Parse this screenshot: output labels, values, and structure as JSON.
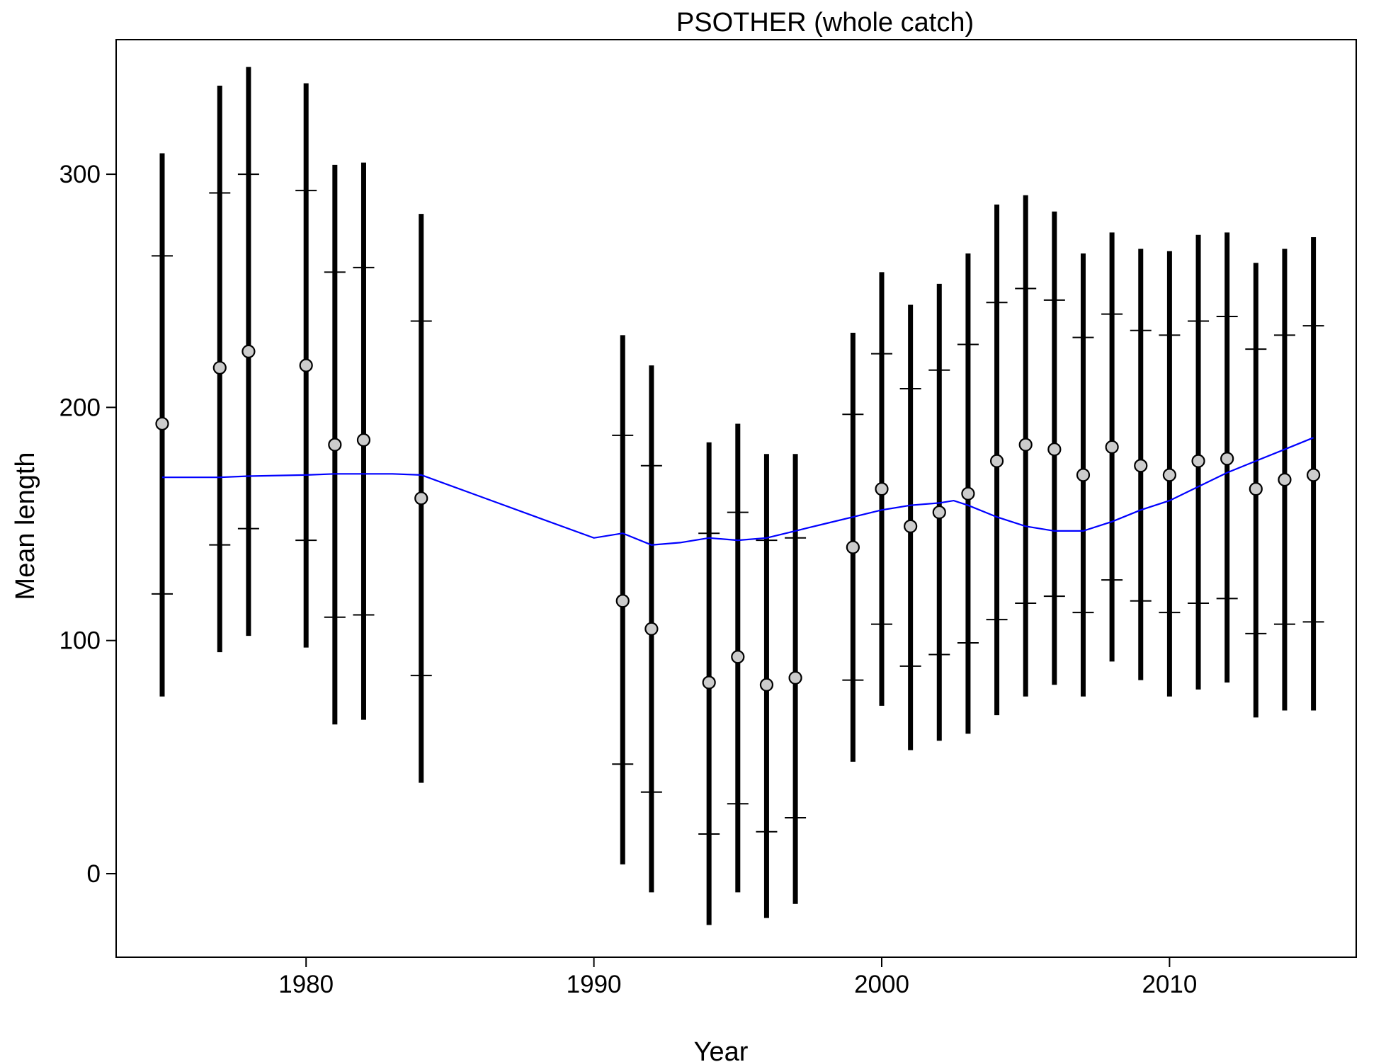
{
  "chart_data": {
    "type": "scatter",
    "title": "PSOTHER (whole catch)",
    "xlabel": "Year",
    "ylabel": "Mean length",
    "xlim": [
      1975,
      2016
    ],
    "ylim": [
      -35,
      355
    ],
    "x_ticks": [
      1980,
      1990,
      2000,
      2010
    ],
    "y_ticks": [
      0,
      100,
      200,
      300
    ],
    "grid": false,
    "legend": "none",
    "colors": {
      "bars": "#000000",
      "point_fill": "#cccccc",
      "point_stroke": "#000000",
      "smoother": "#0000ff"
    },
    "series": [
      {
        "type": "points-with-intervals",
        "points": [
          {
            "year": 1975,
            "mean": 193,
            "inner_lo": 120,
            "inner_hi": 265,
            "outer_lo": 76,
            "outer_hi": 309
          },
          {
            "year": 1977,
            "mean": 217,
            "inner_lo": 141,
            "inner_hi": 292,
            "outer_lo": 95,
            "outer_hi": 338
          },
          {
            "year": 1978,
            "mean": 224,
            "inner_lo": 148,
            "inner_hi": 300,
            "outer_lo": 102,
            "outer_hi": 346
          },
          {
            "year": 1980,
            "mean": 218,
            "inner_lo": 143,
            "inner_hi": 293,
            "outer_lo": 97,
            "outer_hi": 339
          },
          {
            "year": 1981,
            "mean": 184,
            "inner_lo": 110,
            "inner_hi": 258,
            "outer_lo": 64,
            "outer_hi": 304
          },
          {
            "year": 1982,
            "mean": 186,
            "inner_lo": 111,
            "inner_hi": 260,
            "outer_lo": 66,
            "outer_hi": 305
          },
          {
            "year": 1984,
            "mean": 161,
            "inner_lo": 85,
            "inner_hi": 237,
            "outer_lo": 39,
            "outer_hi": 283
          },
          {
            "year": 1991,
            "mean": 117,
            "inner_lo": 47,
            "inner_hi": 188,
            "outer_lo": 4,
            "outer_hi": 231
          },
          {
            "year": 1992,
            "mean": 105,
            "inner_lo": 35,
            "inner_hi": 175,
            "outer_lo": -8,
            "outer_hi": 218
          },
          {
            "year": 1994,
            "mean": 82,
            "inner_lo": 17,
            "inner_hi": 146,
            "outer_lo": -22,
            "outer_hi": 185
          },
          {
            "year": 1995,
            "mean": 93,
            "inner_lo": 30,
            "inner_hi": 155,
            "outer_lo": -8,
            "outer_hi": 193
          },
          {
            "year": 1996,
            "mean": 81,
            "inner_lo": 18,
            "inner_hi": 143,
            "outer_lo": -19,
            "outer_hi": 180
          },
          {
            "year": 1997,
            "mean": 84,
            "inner_lo": 24,
            "inner_hi": 144,
            "outer_lo": -13,
            "outer_hi": 180
          },
          {
            "year": 1999,
            "mean": 140,
            "inner_lo": 83,
            "inner_hi": 197,
            "outer_lo": 48,
            "outer_hi": 232
          },
          {
            "year": 2000,
            "mean": 165,
            "inner_lo": 107,
            "inner_hi": 223,
            "outer_lo": 72,
            "outer_hi": 258
          },
          {
            "year": 2001,
            "mean": 149,
            "inner_lo": 89,
            "inner_hi": 208,
            "outer_lo": 53,
            "outer_hi": 244
          },
          {
            "year": 2002,
            "mean": 155,
            "inner_lo": 94,
            "inner_hi": 216,
            "outer_lo": 57,
            "outer_hi": 253
          },
          {
            "year": 2003,
            "mean": 163,
            "inner_lo": 99,
            "inner_hi": 227,
            "outer_lo": 60,
            "outer_hi": 266
          },
          {
            "year": 2004,
            "mean": 177,
            "inner_lo": 109,
            "inner_hi": 245,
            "outer_lo": 68,
            "outer_hi": 287
          },
          {
            "year": 2005,
            "mean": 184,
            "inner_lo": 116,
            "inner_hi": 251,
            "outer_lo": 76,
            "outer_hi": 291
          },
          {
            "year": 2006,
            "mean": 182,
            "inner_lo": 119,
            "inner_hi": 246,
            "outer_lo": 81,
            "outer_hi": 284
          },
          {
            "year": 2007,
            "mean": 171,
            "inner_lo": 112,
            "inner_hi": 230,
            "outer_lo": 76,
            "outer_hi": 266
          },
          {
            "year": 2008,
            "mean": 183,
            "inner_lo": 126,
            "inner_hi": 240,
            "outer_lo": 91,
            "outer_hi": 275
          },
          {
            "year": 2009,
            "mean": 175,
            "inner_lo": 117,
            "inner_hi": 233,
            "outer_lo": 83,
            "outer_hi": 268
          },
          {
            "year": 2010,
            "mean": 171,
            "inner_lo": 112,
            "inner_hi": 231,
            "outer_lo": 76,
            "outer_hi": 267
          },
          {
            "year": 2011,
            "mean": 177,
            "inner_lo": 116,
            "inner_hi": 237,
            "outer_lo": 79,
            "outer_hi": 274
          },
          {
            "year": 2012,
            "mean": 178,
            "inner_lo": 118,
            "inner_hi": 239,
            "outer_lo": 82,
            "outer_hi": 275
          },
          {
            "year": 2013,
            "mean": 165,
            "inner_lo": 103,
            "inner_hi": 225,
            "outer_lo": 67,
            "outer_hi": 262
          },
          {
            "year": 2014,
            "mean": 169,
            "inner_lo": 107,
            "inner_hi": 231,
            "outer_lo": 70,
            "outer_hi": 268
          },
          {
            "year": 2015,
            "mean": 171,
            "inner_lo": 108,
            "inner_hi": 235,
            "outer_lo": 70,
            "outer_hi": 273
          }
        ]
      },
      {
        "type": "line",
        "x": [
          1975,
          1977,
          1978,
          1980,
          1981,
          1982,
          1983,
          1984,
          1986,
          1988,
          1990,
          1991,
          1992,
          1993,
          1994,
          1995,
          1996,
          1997,
          1998,
          1999,
          2000,
          2001,
          2002,
          2002.5,
          2003,
          2004,
          2005,
          2006,
          2007,
          2008,
          2009,
          2010,
          2011,
          2012,
          2013,
          2014,
          2015
        ],
        "y": [
          170,
          170,
          170.5,
          171,
          171.5,
          171.5,
          171.5,
          171,
          162,
          153,
          144,
          146,
          141,
          142,
          144,
          143,
          144,
          147,
          150,
          153,
          156,
          158,
          159,
          160,
          158,
          153,
          149,
          147,
          147,
          151,
          156,
          160,
          166,
          172,
          177,
          182,
          187
        ]
      }
    ]
  }
}
